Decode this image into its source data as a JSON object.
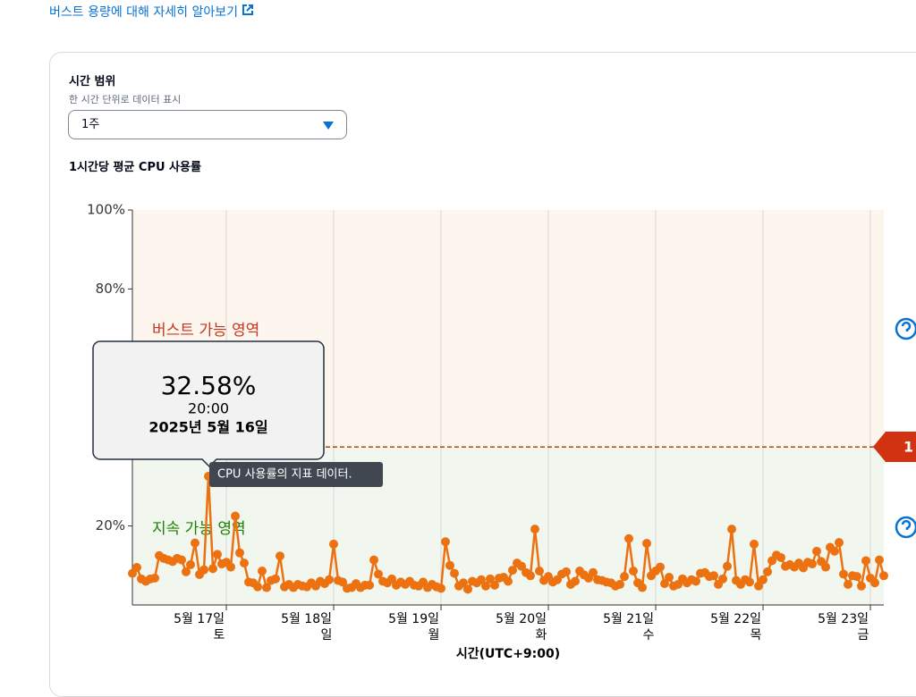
{
  "header": {
    "link": "버스트 용량에 대해 자세히 알아보기"
  },
  "time_range": {
    "label": "시간 범위",
    "description": "한 시간 단위로 데이터 표시",
    "selected": "1주"
  },
  "chart_data": {
    "type": "line",
    "title": "1시간당 평균 CPU 사용률",
    "x_label": "시간(UTC+9:00)",
    "categories": [
      null,
      null,
      null,
      null,
      null,
      null,
      null,
      null,
      null,
      null,
      null,
      null,
      null,
      null,
      null,
      null,
      null,
      null,
      null,
      null,
      null,
      "5월 17일",
      null,
      null,
      null,
      null,
      null,
      null,
      null,
      null,
      null,
      null,
      null,
      null,
      null,
      null,
      null,
      null,
      null,
      null,
      null,
      null,
      null,
      null,
      null,
      "5월 18일",
      null,
      null,
      null,
      null,
      null,
      null,
      null,
      null,
      null,
      null,
      null,
      null,
      null,
      null,
      null,
      null,
      null,
      null,
      null,
      null,
      null,
      null,
      null,
      "5월 19일",
      null,
      null,
      null,
      null,
      null,
      null,
      null,
      null,
      null,
      null,
      null,
      null,
      null,
      null,
      null,
      null,
      null,
      null,
      null,
      null,
      null,
      null,
      null,
      "5월 20일",
      null,
      null,
      null,
      null,
      null,
      null,
      null,
      null,
      null,
      null,
      null,
      null,
      null,
      null,
      null,
      null,
      null,
      null,
      null,
      null,
      null,
      null,
      null,
      "5월 21일",
      null,
      null,
      null,
      null,
      null,
      null,
      null,
      null,
      null,
      null,
      null,
      null,
      null,
      null,
      null,
      null,
      null,
      null,
      null,
      null,
      null,
      null,
      null,
      "5월 22일",
      null,
      null,
      null,
      null,
      null,
      null,
      null,
      null,
      null,
      null,
      null,
      null,
      null,
      null,
      null,
      null,
      null,
      null,
      null,
      null,
      null,
      null,
      null,
      "5월 23일",
      null,
      null,
      null
    ],
    "weekdays": [
      "토",
      "일",
      "월",
      "화",
      "수",
      "목",
      "금"
    ],
    "series": [
      {
        "name": "CPU 사용률",
        "color": "#ec7211",
        "values": [
          8,
          9.5,
          6.6,
          6,
          6.6,
          6.8,
          12.5,
          11.8,
          11.4,
          11,
          11.8,
          11.4,
          8.4,
          10.2,
          15.7,
          7.7,
          8.9,
          32.58,
          9.2,
          12.8,
          10.4,
          10.8,
          9.6,
          22.5,
          13.2,
          10.6,
          5.8,
          5.6,
          4.6,
          8.6,
          4.4,
          6.2,
          6.6,
          12.4,
          4.6,
          5.2,
          4.4,
          5.2,
          4.8,
          4.6,
          5.6,
          4.8,
          6,
          5.4,
          6.4,
          15.4,
          6.2,
          5.8,
          4.2,
          4.4,
          5.4,
          4.4,
          5,
          5,
          11.4,
          7.8,
          6,
          5.6,
          6.6,
          5,
          5.8,
          5.2,
          6,
          5,
          4.8,
          5.8,
          4.4,
          5.2,
          4.6,
          4.2,
          16,
          10,
          8,
          4.8,
          5.6,
          4,
          6,
          5.6,
          6.4,
          4.8,
          6.6,
          5,
          6.8,
          7,
          6,
          8.8,
          10.6,
          9.8,
          8.2,
          7.4,
          19.2,
          8.6,
          6.2,
          7.2,
          5.8,
          6.4,
          7.8,
          8.4,
          5.2,
          6,
          8.6,
          7.6,
          6.8,
          8.2,
          6.4,
          6.2,
          5.8,
          5.6,
          4.8,
          5.2,
          7.2,
          16.8,
          8.6,
          5.6,
          4.4,
          15.6,
          7.4,
          8.6,
          9.6,
          5.4,
          7,
          4.8,
          5.2,
          6.6,
          5.6,
          6.4,
          6,
          8,
          8.2,
          7.2,
          7.4,
          5.2,
          6.6,
          9.8,
          19.2,
          6.2,
          5.2,
          6.4,
          5.8,
          15.4,
          4.8,
          6.4,
          8.4,
          11.2,
          12.6,
          12,
          9.8,
          10.2,
          9.6,
          10.6,
          9.4,
          10.8,
          10.4,
          13.6,
          11,
          9.6,
          14.6,
          13.6,
          15.8,
          7.8,
          5.2,
          7.4,
          7.2,
          4.8,
          11.2,
          6.8,
          5.6,
          11.4,
          7.4
        ]
      }
    ],
    "ylim": [
      0,
      100
    ],
    "yticks": [
      {
        "value": 100,
        "label": "100%"
      },
      {
        "value": 80,
        "label": "80%"
      },
      {
        "value": 20,
        "label": "20%"
      }
    ],
    "threshold": 40,
    "burst_label": "버스트 가능 영역",
    "sustain_label": "지속 가능 영역",
    "badge": "1",
    "tooltip": {
      "value_label": "32.58%",
      "time": "20:00",
      "date": "2025년 5월 16일",
      "hint": "CPU 사용률의 지표 데이터."
    }
  }
}
